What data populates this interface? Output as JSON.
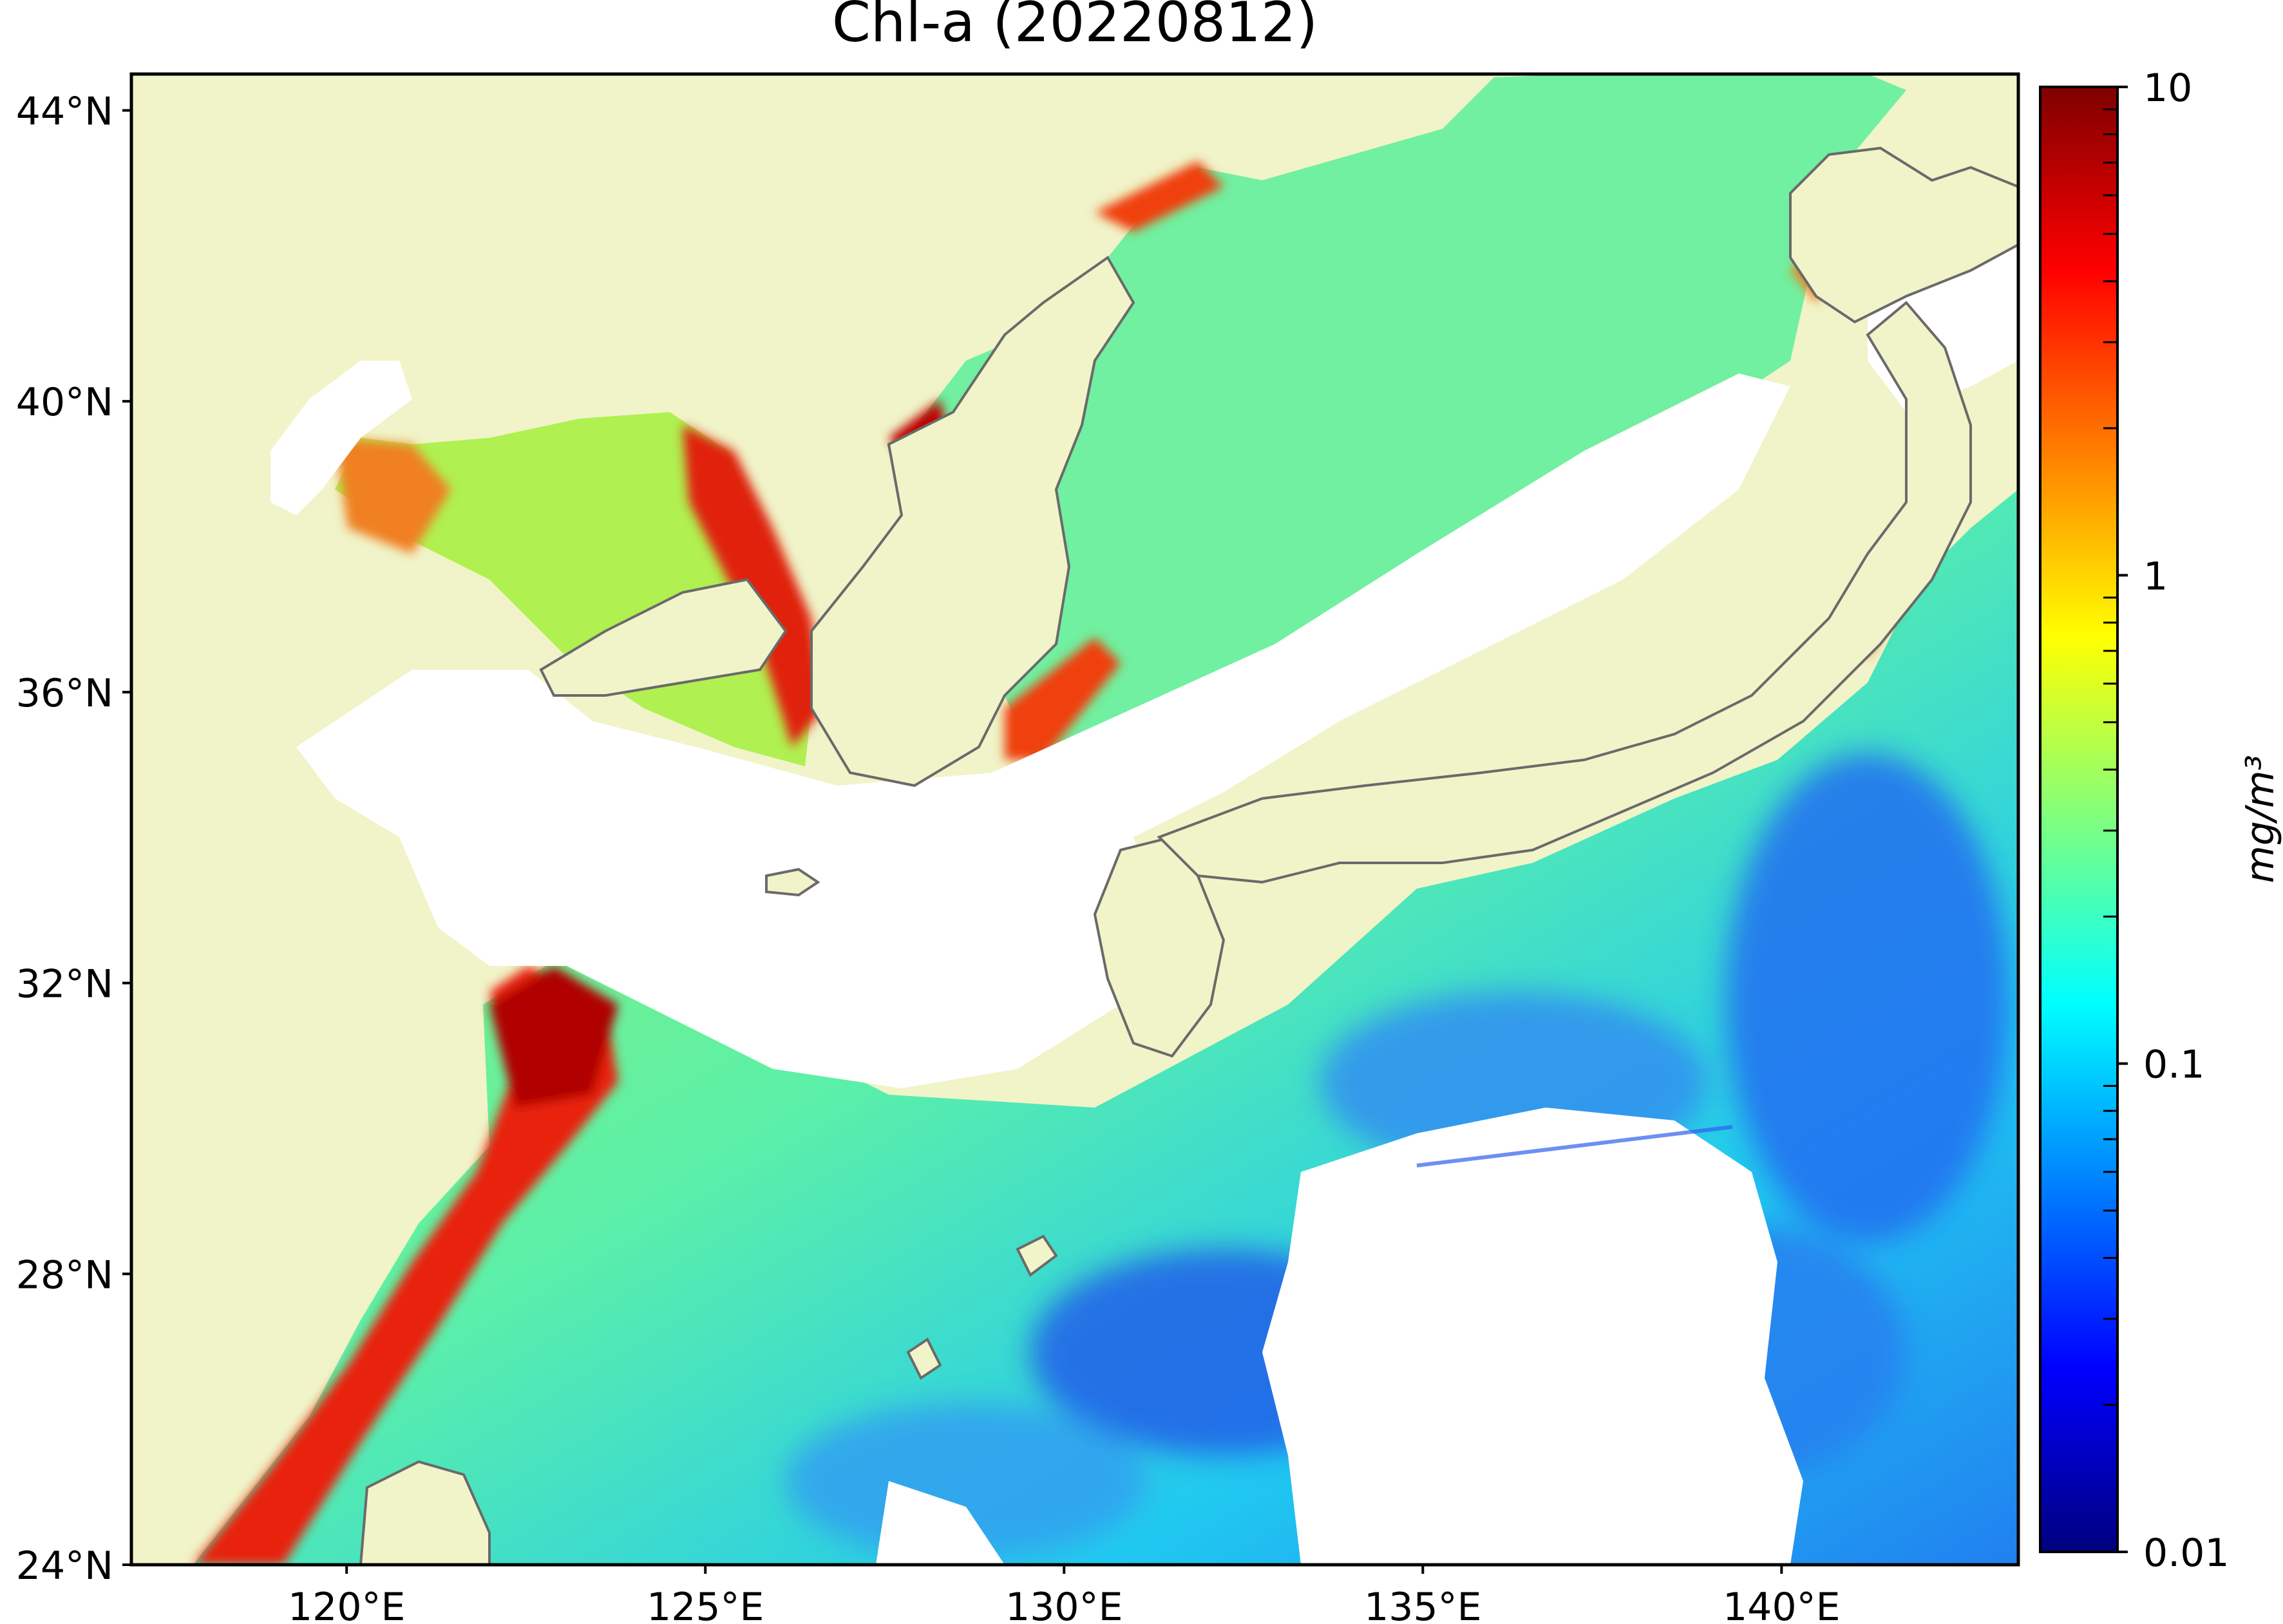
{
  "title": "Chl-a (20220812)",
  "map": {
    "lon_range": [
      117,
      143.3
    ],
    "lat_range": [
      24,
      44.5
    ],
    "x_ticks": [
      {
        "value": 120,
        "label": "120°E"
      },
      {
        "value": 125,
        "label": "125°E"
      },
      {
        "value": 130,
        "label": "130°E"
      },
      {
        "value": 135,
        "label": "135°E"
      },
      {
        "value": 140,
        "label": "140°E"
      }
    ],
    "y_ticks": [
      {
        "value": 24,
        "label": "24°N"
      },
      {
        "value": 28,
        "label": "28°N"
      },
      {
        "value": 32,
        "label": "32°N"
      },
      {
        "value": 36,
        "label": "36°N"
      },
      {
        "value": 40,
        "label": "40°N"
      },
      {
        "value": 44,
        "label": "44°N"
      }
    ],
    "colors": {
      "land": "#f0f4c8",
      "no_data": "#ffffff",
      "coastline": "#6a6a6a"
    }
  },
  "colorbar": {
    "scale": "log",
    "range": [
      0.01,
      10
    ],
    "unit": "mg/m³",
    "ticks": [
      {
        "value": 10,
        "label": "10"
      },
      {
        "value": 1,
        "label": "1"
      },
      {
        "value": 0.1,
        "label": "0.1"
      },
      {
        "value": 0.01,
        "label": "0.01"
      }
    ],
    "colormap": "jet",
    "colormap_stops": [
      "#00007f",
      "#0000ff",
      "#007fff",
      "#00ffff",
      "#7fff7f",
      "#ffff00",
      "#ff7f00",
      "#ff0000",
      "#7f0000"
    ]
  }
}
